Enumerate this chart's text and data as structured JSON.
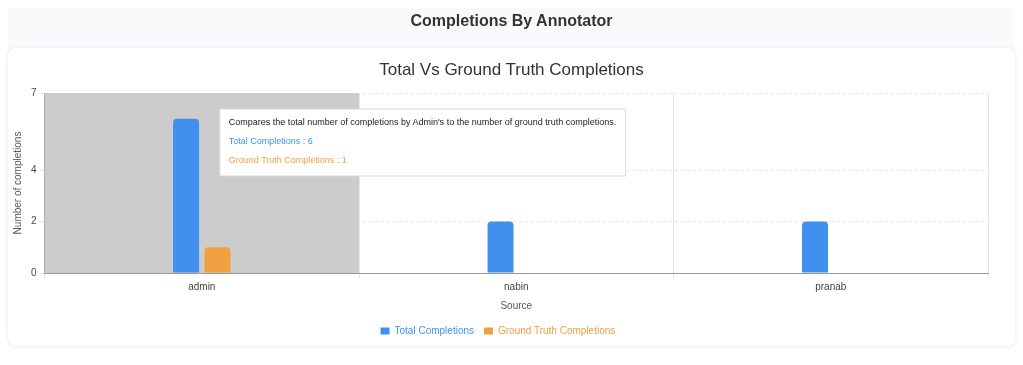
{
  "chart_data": {
    "type": "bar",
    "title": "Completions By Annotator",
    "subtitle": "Total Vs Ground Truth Completions",
    "xlabel": "Source",
    "ylabel": "Number of completions",
    "categories": [
      "admin",
      "nabin",
      "pranab"
    ],
    "series": [
      {
        "name": "Total Completions",
        "color": "#4190f0",
        "values": [
          6,
          2,
          2
        ]
      },
      {
        "name": "Ground Truth Completions",
        "color": "#f0a040",
        "values": [
          1,
          0,
          0
        ]
      }
    ],
    "ylim": [
      0,
      7
    ],
    "yticks": [
      0,
      2,
      4,
      7
    ],
    "grid": true,
    "legend": "bottom",
    "bands": [
      {
        "axis": "x",
        "from": "admin",
        "to": "admin",
        "color": "#cccccc"
      }
    ],
    "annotations": [
      "Compares the total number of completions by Admin's to the number of ground truth completions.",
      "Total Completions : 6",
      "Ground Truth Completions : 1"
    ]
  }
}
